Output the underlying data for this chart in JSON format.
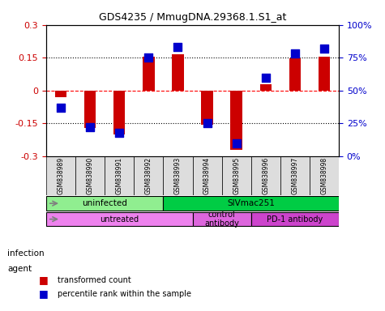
{
  "title": "GDS4235 / MmugDNA.29368.1.S1_at",
  "samples": [
    "GSM838989",
    "GSM838990",
    "GSM838991",
    "GSM838992",
    "GSM838993",
    "GSM838994",
    "GSM838995",
    "GSM838996",
    "GSM838997",
    "GSM838998"
  ],
  "red_values": [
    -0.03,
    -0.17,
    -0.2,
    0.155,
    0.165,
    -0.155,
    -0.27,
    0.03,
    0.148,
    0.153
  ],
  "blue_values": [
    37,
    22,
    18,
    75,
    83,
    25,
    10,
    60,
    78,
    82
  ],
  "infection_groups": [
    {
      "label": "uninfected",
      "start": 0,
      "end": 4,
      "color": "#90ee90"
    },
    {
      "label": "SIVmac251",
      "start": 4,
      "end": 10,
      "color": "#00cc44"
    }
  ],
  "agent_groups": [
    {
      "label": "untreated",
      "start": 0,
      "end": 5,
      "color": "#ee82ee"
    },
    {
      "label": "control\nantibody",
      "start": 5,
      "end": 7,
      "color": "#dd66dd"
    },
    {
      "label": "PD-1 antibody",
      "start": 7,
      "end": 10,
      "color": "#cc44cc"
    }
  ],
  "ylim_left": [
    -0.3,
    0.3
  ],
  "ylim_right": [
    0,
    100
  ],
  "yticks_left": [
    -0.3,
    -0.15,
    0,
    0.15,
    0.3
  ],
  "yticks_right": [
    0,
    25,
    50,
    75,
    100
  ],
  "ytick_labels_right": [
    "0%",
    "25%",
    "50%",
    "75%",
    "100%"
  ],
  "red_color": "#cc0000",
  "blue_color": "#0000cc",
  "bar_width": 0.4,
  "dot_size": 60
}
